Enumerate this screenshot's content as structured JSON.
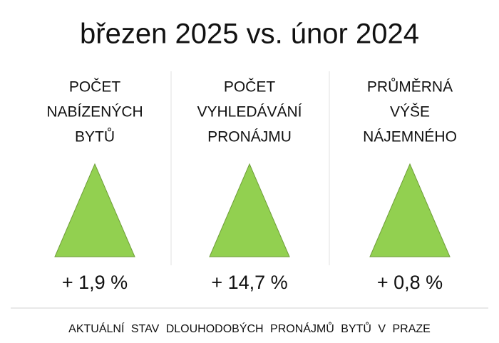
{
  "title": "březen 2025 vs. únor 2024",
  "panels": [
    {
      "label_lines": [
        "POČET",
        "NABÍZENÝCH",
        "BYTŮ"
      ],
      "value": "+ 1,9 %"
    },
    {
      "label_lines": [
        "POČET",
        "VYHLEDÁVÁNÍ",
        "PRONÁJMU"
      ],
      "value": "+ 14,7 %"
    },
    {
      "label_lines": [
        "PRŮMĚRNÁ",
        "VÝŠE",
        "NÁJEMNÉHO"
      ],
      "value": "+ 0,8 %"
    }
  ],
  "footer": "AKTUÁLNÍ STAV DLOUHODOBÝCH PRONÁJMŮ BYTŮ V PRAZE"
}
